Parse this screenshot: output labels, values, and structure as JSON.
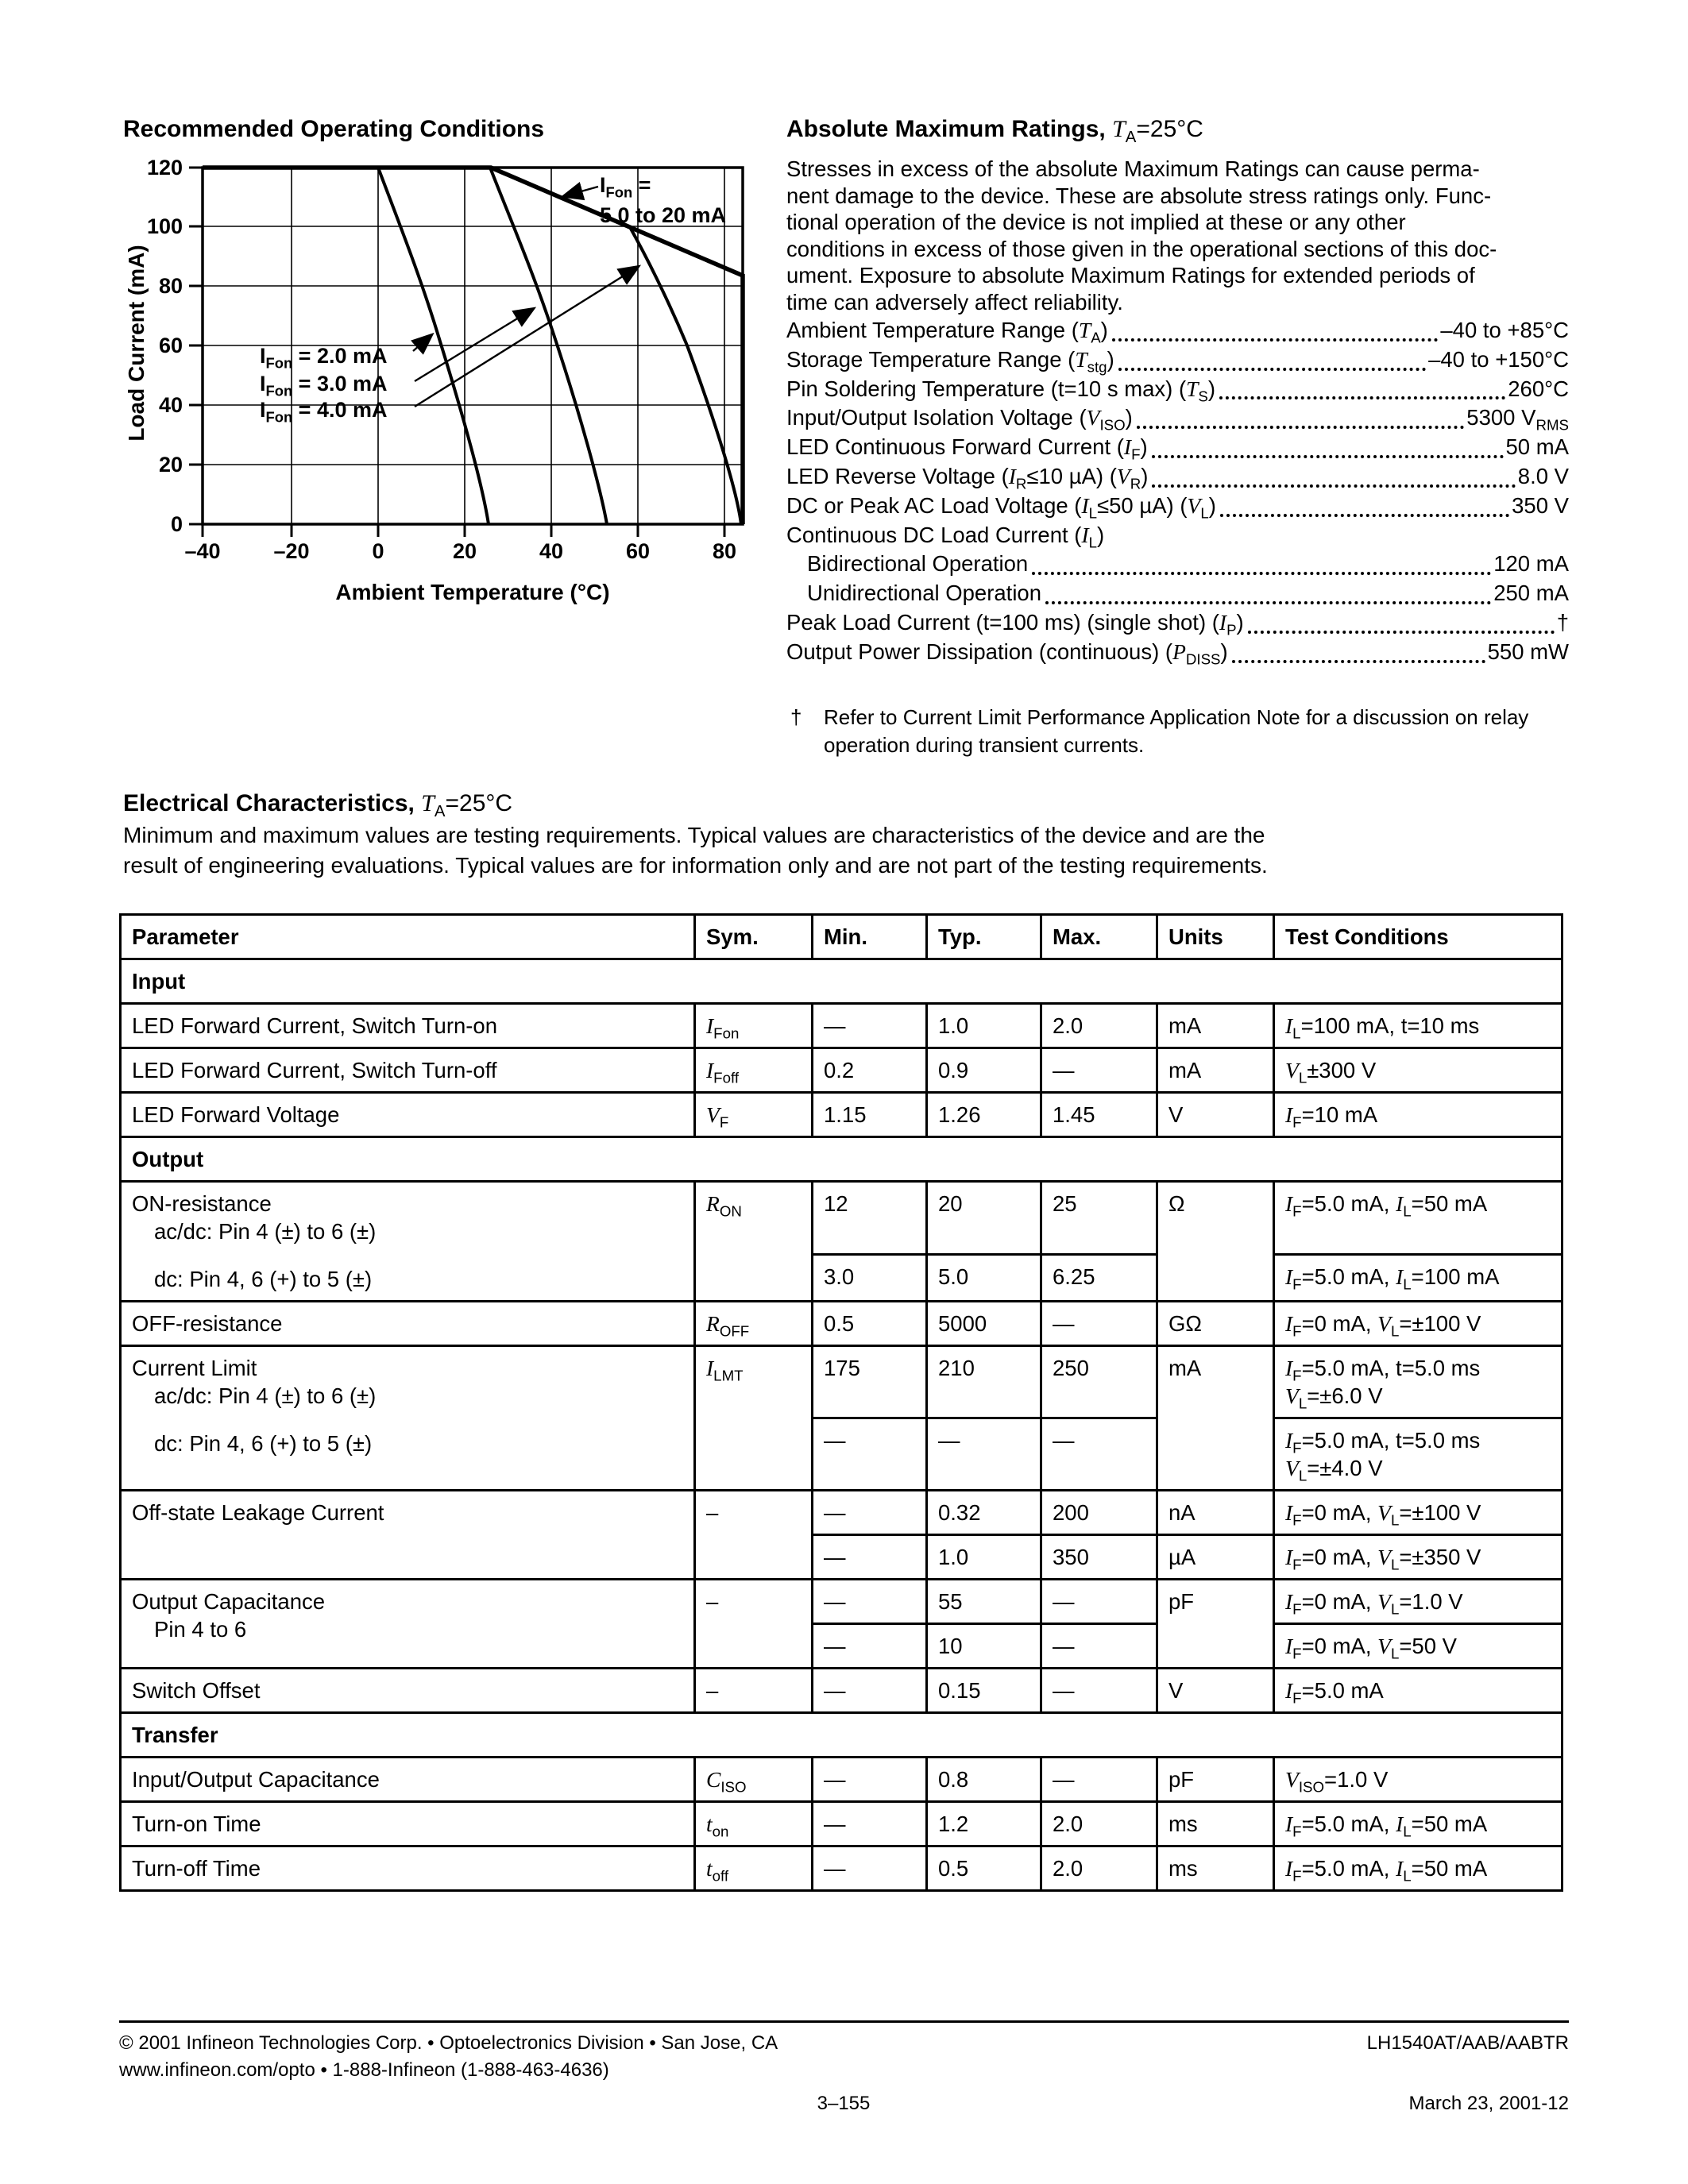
{
  "roc": {
    "title": "Recommended Operating Conditions"
  },
  "chart": {
    "ylabel": "Load Current (mA)",
    "xlabel": "Ambient Temperature (°C)",
    "y_ticks": [
      "120",
      "100",
      "80",
      "60",
      "40",
      "20",
      "0"
    ],
    "x_ticks": [
      "–40",
      "–20",
      "0",
      "20",
      "40",
      "60",
      "80"
    ],
    "labels": {
      "fon_hi_1": "I_{Fon} =",
      "fon_hi_2": "5.0 to 20 mA",
      "fon_2": "I_{Fon} = 2.0 mA",
      "fon_3": "I_{Fon} = 3.0 mA",
      "fon_4": "I_{Fon} = 4.0 mA"
    }
  },
  "chart_data": {
    "type": "line",
    "title": "Recommended Operating Conditions",
    "xlabel": "Ambient Temperature (°C)",
    "ylabel": "Load Current (mA)",
    "xlim": [
      -40,
      85
    ],
    "ylim": [
      0,
      120
    ],
    "grid": true,
    "series": [
      {
        "name": "IFon = 5.0 to 20 mA",
        "points": [
          [
            -40,
            120
          ],
          [
            26,
            120
          ],
          [
            85,
            84
          ]
        ]
      },
      {
        "name": "IFon = 2.0 mA",
        "points": [
          [
            0,
            120
          ],
          [
            8,
            92
          ],
          [
            13,
            63
          ],
          [
            20,
            30
          ],
          [
            25.5,
            0
          ]
        ]
      },
      {
        "name": "IFon = 3.0 mA",
        "points": [
          [
            26,
            120
          ],
          [
            33,
            90
          ],
          [
            37,
            73
          ],
          [
            47,
            28
          ],
          [
            53,
            0
          ]
        ]
      },
      {
        "name": "IFon = 4.0 mA",
        "points": [
          [
            58,
            100
          ],
          [
            62,
            85
          ],
          [
            72,
            45
          ],
          [
            80,
            15
          ],
          [
            84,
            0
          ]
        ]
      }
    ]
  },
  "amr": {
    "title": "Absolute Maximum Ratings,",
    "title_sub": "*T*_{A}=25°C",
    "para": [
      "Stresses in excess of the absolute Maximum Ratings can cause perma-",
      "nent damage to the device. These are absolute stress ratings only. Func-",
      "tional operation of the device is not implied at these or any other",
      "conditions in excess of those given in the operational sections of this doc-",
      "ument. Exposure to absolute Maximum Ratings for extended periods of",
      "time can adversely affect reliability."
    ],
    "items": [
      {
        "label": "Ambient Temperature Range (*T*_{A})",
        "value": "–40 to +85°C"
      },
      {
        "label": "Storage Temperature Range (*T*_{stg})",
        "value": "–40 to +150°C"
      },
      {
        "label": "Pin Soldering Temperature (t=10 s max) (*T*_{S})",
        "value": "260°C"
      },
      {
        "label": "Input/Output Isolation Voltage (*V*_{ISO})",
        "value": "5300 V_{RMS}"
      },
      {
        "label": "LED Continuous Forward Current (*I*_{F})",
        "value": "50 mA"
      },
      {
        "label": "LED Reverse Voltage (*I*_{R}≤10 µA) (*V*_{R})",
        "value": "8.0 V"
      },
      {
        "label": "DC or Peak AC Load Voltage (*I*_{L}≤50 µA) (*V*_{L})",
        "value": "350 V"
      },
      {
        "label": "Continuous DC Load Current (*I*_{L})",
        "value": ""
      },
      {
        "label": "Bidirectional Operation",
        "value": "120 mA"
      },
      {
        "label": "Unidirectional Operation",
        "value": "250 mA"
      },
      {
        "label": "Peak Load Current (t=100 ms) (single shot) (*I*_{P})",
        "value": "†"
      },
      {
        "label": "Output Power Dissipation (continuous) (*P*_{DISS})",
        "value": "550 mW"
      }
    ],
    "footnote_dagger": "†",
    "footnote": "Refer to Current Limit Performance Application Note for a discussion on relay operation during transient currents."
  },
  "ec": {
    "title": "Electrical Characteristics,",
    "title_sub": "*T*_{A}=25°C",
    "intro": [
      "Minimum and maximum values are testing requirements. Typical values are characteristics of the device and are the",
      "result of engineering evaluations. Typical values are for information only and are not part of the testing requirements."
    ]
  },
  "table": {
    "h": [
      "Parameter",
      "Sym.",
      "Min.",
      "Typ.",
      "Max.",
      "Units",
      "Test Conditions"
    ],
    "sec1": "Input",
    "sec2": "Output",
    "sec3": "Transfer",
    "r1": {
      "p": "LED Forward Current, Switch Turn-on",
      "s": "*I*_{Fon}",
      "mn": "—",
      "ty": "1.0",
      "mx": "2.0",
      "u": "mA",
      "tc": "*I*_{L}=100 mA, t=10 ms"
    },
    "r2": {
      "p": "LED Forward Current, Switch Turn-off",
      "s": "*I*_{Foff}",
      "mn": "0.2",
      "ty": "0.9",
      "mx": "—",
      "u": "mA",
      "tc": "*V*_{L}±300 V"
    },
    "r3": {
      "p": "LED Forward Voltage",
      "s": "*V*_{F}",
      "mn": "1.15",
      "ty": "1.26",
      "mx": "1.45",
      "u": "V",
      "tc": "*I*_{F}=10 mA"
    },
    "ron": {
      "p1": "ON-resistance",
      "p2": "ac/dc: Pin 4 (±) to 6 (±)",
      "p3": "dc: Pin 4, 6 (+) to 5 (±)",
      "s": "*R*_{ON}",
      "u": "Ω",
      "a": {
        "mn": "12",
        "ty": "20",
        "mx": "25",
        "tc": "*I*_{F}=5.0 mA, *I*_{L}=50 mA"
      },
      "b": {
        "mn": "3.0",
        "ty": "5.0",
        "mx": "6.25",
        "tc": "*I*_{F}=5.0 mA, *I*_{L}=100 mA"
      }
    },
    "roff": {
      "p": "OFF-resistance",
      "s": "*R*_{OFF}",
      "mn": "0.5",
      "ty": "5000",
      "mx": "—",
      "u": "GΩ",
      "tc": "*I*_{F}=0 mA, *V*_{L}=±100 V"
    },
    "ilmt": {
      "p1": "Current Limit",
      "p2": "ac/dc: Pin 4 (±) to 6 (±)",
      "p3": "dc: Pin 4, 6 (+) to 5 (±)",
      "s": "*I*_{LMT}",
      "u": "mA",
      "a": {
        "mn": "175",
        "ty": "210",
        "mx": "250",
        "tc": "*I*_{F}=5.0 mA, t=5.0 ms\n*V*_{L}=±6.0 V"
      },
      "b": {
        "mn": "—",
        "ty": "—",
        "mx": "—",
        "tc": "*I*_{F}=5.0 mA, t=5.0 ms\n*V*_{L}=±4.0 V"
      }
    },
    "leak": {
      "p": "Off-state Leakage Current",
      "s": "–",
      "a": {
        "mn": "—",
        "ty": "0.32",
        "mx": "200",
        "u": "nA",
        "tc": "*I*_{F}=0 mA, *V*_{L}=±100 V"
      },
      "b": {
        "mn": "—",
        "ty": "1.0",
        "mx": "350",
        "u": "µA",
        "tc": "*I*_{F}=0 mA, *V*_{L}=±350 V"
      }
    },
    "ocap": {
      "p1": "Output Capacitance",
      "p2": "Pin 4 to 6",
      "s": "–",
      "u": "pF",
      "a": {
        "mn": "—",
        "ty": "55",
        "mx": "—",
        "tc": "*I*_{F}=0 mA, *V*_{L}=1.0 V"
      },
      "b": {
        "mn": "—",
        "ty": "10",
        "mx": "—",
        "tc": "*I*_{F}=0 mA, *V*_{L}=50 V"
      }
    },
    "soff": {
      "p": "Switch Offset",
      "s": "–",
      "mn": "—",
      "ty": "0.15",
      "mx": "—",
      "u": "V",
      "tc": "*I*_{F}=5.0 mA"
    },
    "ciso": {
      "p": "Input/Output Capacitance",
      "s": "*C*_{ISO}",
      "mn": "—",
      "ty": "0.8",
      "mx": "—",
      "u": "pF",
      "tc": "*V*_{ISO}=1.0 V"
    },
    "ton": {
      "p": "Turn-on Time",
      "s": "*t*_{on}",
      "mn": "—",
      "ty": "1.2",
      "mx": "2.0",
      "u": "ms",
      "tc": "*I*_{F}=5.0 mA, *I*_{L}=50 mA"
    },
    "toff": {
      "p": "Turn-off Time",
      "s": "*t*_{off}",
      "mn": "—",
      "ty": "0.5",
      "mx": "2.0",
      "u": "ms",
      "tc": "*I*_{F}=5.0 mA, *I*_{L}=50 mA"
    }
  },
  "footer": {
    "copyright": "© 2001 Infineon Technologies Corp. • Optoelectronics Division • San Jose, CA",
    "web": "www.infineon.com/opto • 1-888-Infineon (1-888-463-4636)",
    "part": "LH1540AT/AAB/AABTR",
    "page": "3–155",
    "date": "March 23, 2001-12"
  }
}
